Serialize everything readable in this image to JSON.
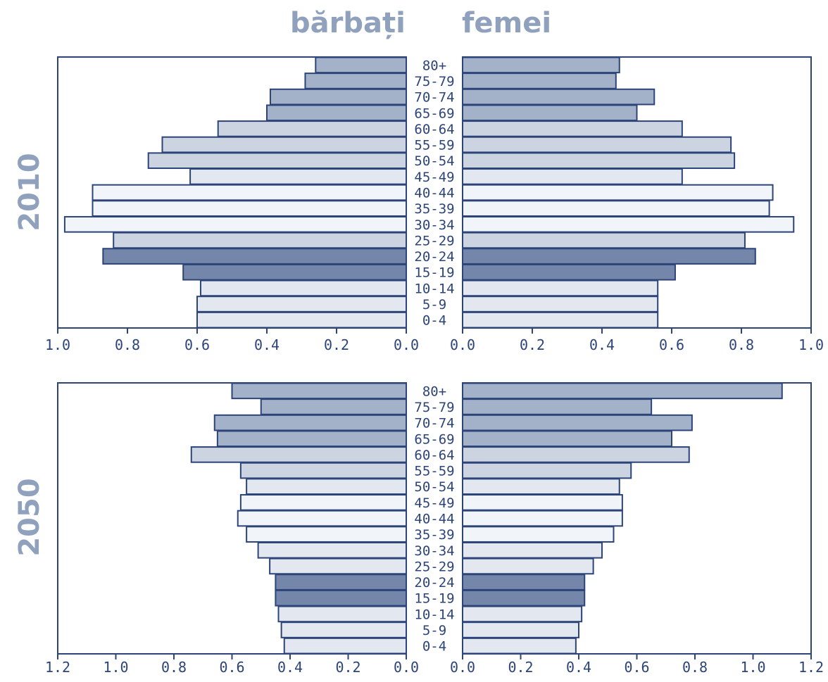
{
  "headers": {
    "male": "bărbați",
    "female": "femei"
  },
  "colors": {
    "frame": "#2c4478",
    "text": "#2c4478",
    "header": "#8fa1bd",
    "shade_darkest": "#7586ab",
    "shade_dark": "#a3b1c9",
    "shade_mid": "#ccd4e2",
    "shade_light": "#e2e7f0",
    "shade_lightest": "#f1f4f8"
  },
  "chart_data": [
    {
      "type": "bar",
      "orientation": "horizontal-pyramid",
      "year_label": "2010",
      "categories": [
        "80+",
        "75-79",
        "70-74",
        "65-69",
        "60-64",
        "55-59",
        "50-54",
        "45-49",
        "40-44",
        "35-39",
        "30-34",
        "25-29",
        "20-24",
        "15-19",
        "10-14",
        "5-9",
        "0-4"
      ],
      "series": [
        {
          "name": "bărbați",
          "values": [
            0.26,
            0.29,
            0.39,
            0.4,
            0.54,
            0.7,
            0.74,
            0.62,
            0.9,
            0.9,
            0.98,
            0.84,
            0.87,
            0.64,
            0.59,
            0.6,
            0.6
          ]
        },
        {
          "name": "femei",
          "values": [
            0.45,
            0.44,
            0.55,
            0.5,
            0.63,
            0.77,
            0.78,
            0.63,
            0.89,
            0.88,
            0.95,
            0.81,
            0.84,
            0.61,
            0.56,
            0.56,
            0.56
          ]
        }
      ],
      "shades": [
        "dark",
        "dark",
        "dark",
        "dark",
        "mid",
        "mid",
        "mid",
        "light",
        "lightest",
        "lightest",
        "lightest",
        "mid",
        "darkest",
        "darkest",
        "light",
        "light",
        "light"
      ],
      "xlim": [
        0,
        1.0
      ],
      "ticks": [
        "1.0",
        "0.8",
        "0.6",
        "0.4",
        "0.2",
        "0.0"
      ],
      "ticks_right": [
        "0.0",
        "0.2",
        "0.4",
        "0.6",
        "0.8",
        "1.0"
      ]
    },
    {
      "type": "bar",
      "orientation": "horizontal-pyramid",
      "year_label": "2050",
      "categories": [
        "80+",
        "75-79",
        "70-74",
        "65-69",
        "60-64",
        "55-59",
        "50-54",
        "45-49",
        "40-44",
        "35-39",
        "30-34",
        "25-29",
        "20-24",
        "15-19",
        "10-14",
        "5-9",
        "0-4"
      ],
      "series": [
        {
          "name": "bărbați",
          "values": [
            0.6,
            0.5,
            0.66,
            0.65,
            0.74,
            0.57,
            0.55,
            0.57,
            0.58,
            0.55,
            0.51,
            0.47,
            0.45,
            0.45,
            0.44,
            0.43,
            0.42
          ]
        },
        {
          "name": "femei",
          "values": [
            1.1,
            0.65,
            0.79,
            0.72,
            0.78,
            0.58,
            0.54,
            0.55,
            0.55,
            0.52,
            0.48,
            0.45,
            0.42,
            0.42,
            0.41,
            0.4,
            0.39
          ]
        }
      ],
      "shades": [
        "dark",
        "dark",
        "dark",
        "dark",
        "mid",
        "mid",
        "light",
        "lightest",
        "lightest",
        "lightest",
        "light",
        "light",
        "darkest",
        "darkest",
        "light",
        "light",
        "light"
      ],
      "xlim": [
        0,
        1.2
      ],
      "ticks": [
        "1.2",
        "1.0",
        "0.8",
        "0.6",
        "0.4",
        "0.2",
        "0.0"
      ],
      "ticks_right": [
        "0.0",
        "0.2",
        "0.4",
        "0.6",
        "0.8",
        "1.0",
        "1.2"
      ]
    }
  ]
}
